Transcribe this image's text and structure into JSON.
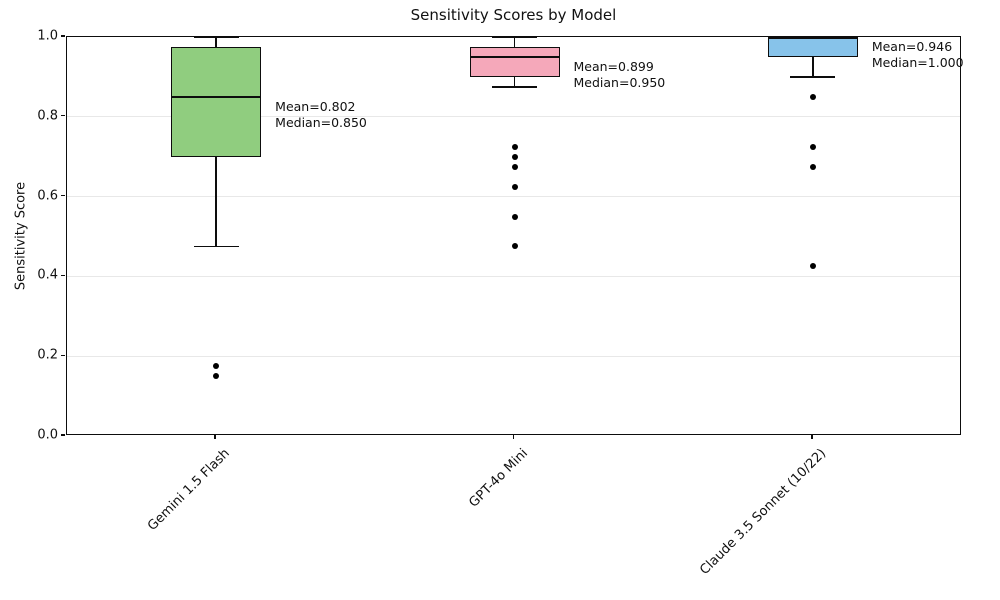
{
  "title": "Sensitivity Scores by Model",
  "chart_data": {
    "type": "box",
    "title": "Sensitivity Scores by Model",
    "xlabel": "",
    "ylabel": "Sensitivity Score",
    "ylim": [
      0.0,
      1.0
    ],
    "yticks": [
      0.0,
      0.2,
      0.4,
      0.6,
      0.8,
      1.0
    ],
    "ytick_labels": [
      "0.0",
      "0.2",
      "0.4",
      "0.6",
      "0.8",
      "1.0"
    ],
    "grid": "horizontal-light",
    "legend": "none",
    "categories": [
      "Gemini 1.5 Flash",
      "GPT-4o Mini",
      "Claude 3.5 Sonnet (10/22)"
    ],
    "series": [
      {
        "model": "Gemini 1.5 Flash",
        "box_color": "#90cd7f",
        "whisker_low": 0.475,
        "q1": 0.7,
        "median": 0.85,
        "q3": 0.975,
        "whisker_high": 1.0,
        "outliers": [
          0.175,
          0.15
        ],
        "mean": 0.802,
        "annotation_lines": [
          "Mean=0.802",
          "Median=0.850"
        ]
      },
      {
        "model": "GPT-4o Mini",
        "box_color": "#f5a8ba",
        "whisker_low": 0.875,
        "q1": 0.9,
        "median": 0.95,
        "q3": 0.975,
        "whisker_high": 1.0,
        "outliers": [
          0.725,
          0.7,
          0.675,
          0.625,
          0.55,
          0.475
        ],
        "mean": 0.899,
        "annotation_lines": [
          "Mean=0.899",
          "Median=0.950"
        ]
      },
      {
        "model": "Claude 3.5 Sonnet (10/22)",
        "box_color": "#87c3ea",
        "whisker_low": 0.9,
        "q1": 0.95,
        "median": 1.0,
        "q3": 1.0,
        "whisker_high": 1.0,
        "outliers": [
          0.85,
          0.725,
          0.675,
          0.425
        ],
        "mean": 0.946,
        "annotation_lines": [
          "Mean=0.946",
          "Median=1.000"
        ]
      }
    ],
    "style_colors": {
      "edge": "#0d0d0d",
      "grid": "#e8e8e8",
      "outlier": "#000000",
      "background": "#ffffff"
    }
  }
}
